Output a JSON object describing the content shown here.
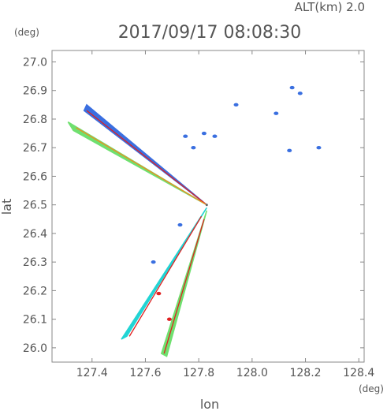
{
  "header": {
    "altitude_label": "ALT(km)  2.0",
    "timestamp": "2017/09/17 08:08:30"
  },
  "chart_data": {
    "type": "scatter",
    "title": "2017/09/17 08:08:30",
    "subtitle": "ALT(km)  2.0",
    "xlabel": "lon",
    "ylabel": "lat",
    "x_unit": "(deg)",
    "y_unit": "(deg)",
    "xlim": [
      127.25,
      128.42
    ],
    "ylim": [
      25.95,
      27.04
    ],
    "x_ticks": [
      "127.4",
      "127.6",
      "127.8",
      "128.0",
      "128.2",
      "128.4"
    ],
    "y_ticks": [
      "26.0",
      "26.1",
      "26.2",
      "26.3",
      "26.4",
      "26.5",
      "26.6",
      "26.7",
      "26.8",
      "26.9",
      "27.0"
    ],
    "grid": false,
    "colors": {
      "blue": "#3a6fe0",
      "cyan": "#22d4d4",
      "green": "#6fe06f",
      "yellow": "#d8e838",
      "orange": "#f08a20",
      "red": "#e02020"
    },
    "radar_origin": {
      "lon": 127.83,
      "lat": 26.5
    },
    "beams": [
      {
        "points": [
          [
            127.38,
            26.85
          ],
          [
            127.37,
            26.83
          ],
          [
            127.83,
            26.5
          ]
        ],
        "color": "blue"
      },
      {
        "points": [
          [
            127.31,
            26.79
          ],
          [
            127.33,
            26.76
          ],
          [
            127.83,
            26.5
          ]
        ],
        "color": "green"
      },
      {
        "points": [
          [
            127.53,
            26.04
          ],
          [
            127.51,
            26.03
          ],
          [
            127.83,
            26.49
          ]
        ],
        "color": "cyan"
      },
      {
        "points": [
          [
            127.68,
            25.97
          ],
          [
            127.66,
            25.98
          ],
          [
            127.83,
            26.48
          ]
        ],
        "color": "green"
      }
    ],
    "beam_edges": [
      {
        "from": [
          127.38,
          26.83
        ],
        "to": [
          127.83,
          26.5
        ],
        "color": "red"
      },
      {
        "from": [
          127.34,
          26.77
        ],
        "to": [
          127.83,
          26.5
        ],
        "color": "orange"
      },
      {
        "from": [
          127.54,
          26.04
        ],
        "to": [
          127.81,
          26.46
        ],
        "color": "red"
      },
      {
        "from": [
          127.67,
          25.98
        ],
        "to": [
          127.82,
          26.45
        ],
        "color": "red"
      }
    ],
    "echoes": [
      {
        "lon": 128.15,
        "lat": 26.91,
        "color": "blue"
      },
      {
        "lon": 128.18,
        "lat": 26.89,
        "color": "blue"
      },
      {
        "lon": 127.94,
        "lat": 26.85,
        "color": "blue"
      },
      {
        "lon": 128.09,
        "lat": 26.82,
        "color": "blue"
      },
      {
        "lon": 127.82,
        "lat": 26.75,
        "color": "blue"
      },
      {
        "lon": 127.75,
        "lat": 26.74,
        "color": "blue"
      },
      {
        "lon": 127.86,
        "lat": 26.74,
        "color": "blue"
      },
      {
        "lon": 127.78,
        "lat": 26.7,
        "color": "blue"
      },
      {
        "lon": 128.14,
        "lat": 26.69,
        "color": "blue"
      },
      {
        "lon": 128.25,
        "lat": 26.7,
        "color": "blue"
      },
      {
        "lon": 127.73,
        "lat": 26.43,
        "color": "blue"
      },
      {
        "lon": 127.63,
        "lat": 26.3,
        "color": "blue"
      },
      {
        "lon": 127.65,
        "lat": 26.19,
        "color": "red"
      },
      {
        "lon": 127.69,
        "lat": 26.1,
        "color": "red"
      }
    ]
  }
}
